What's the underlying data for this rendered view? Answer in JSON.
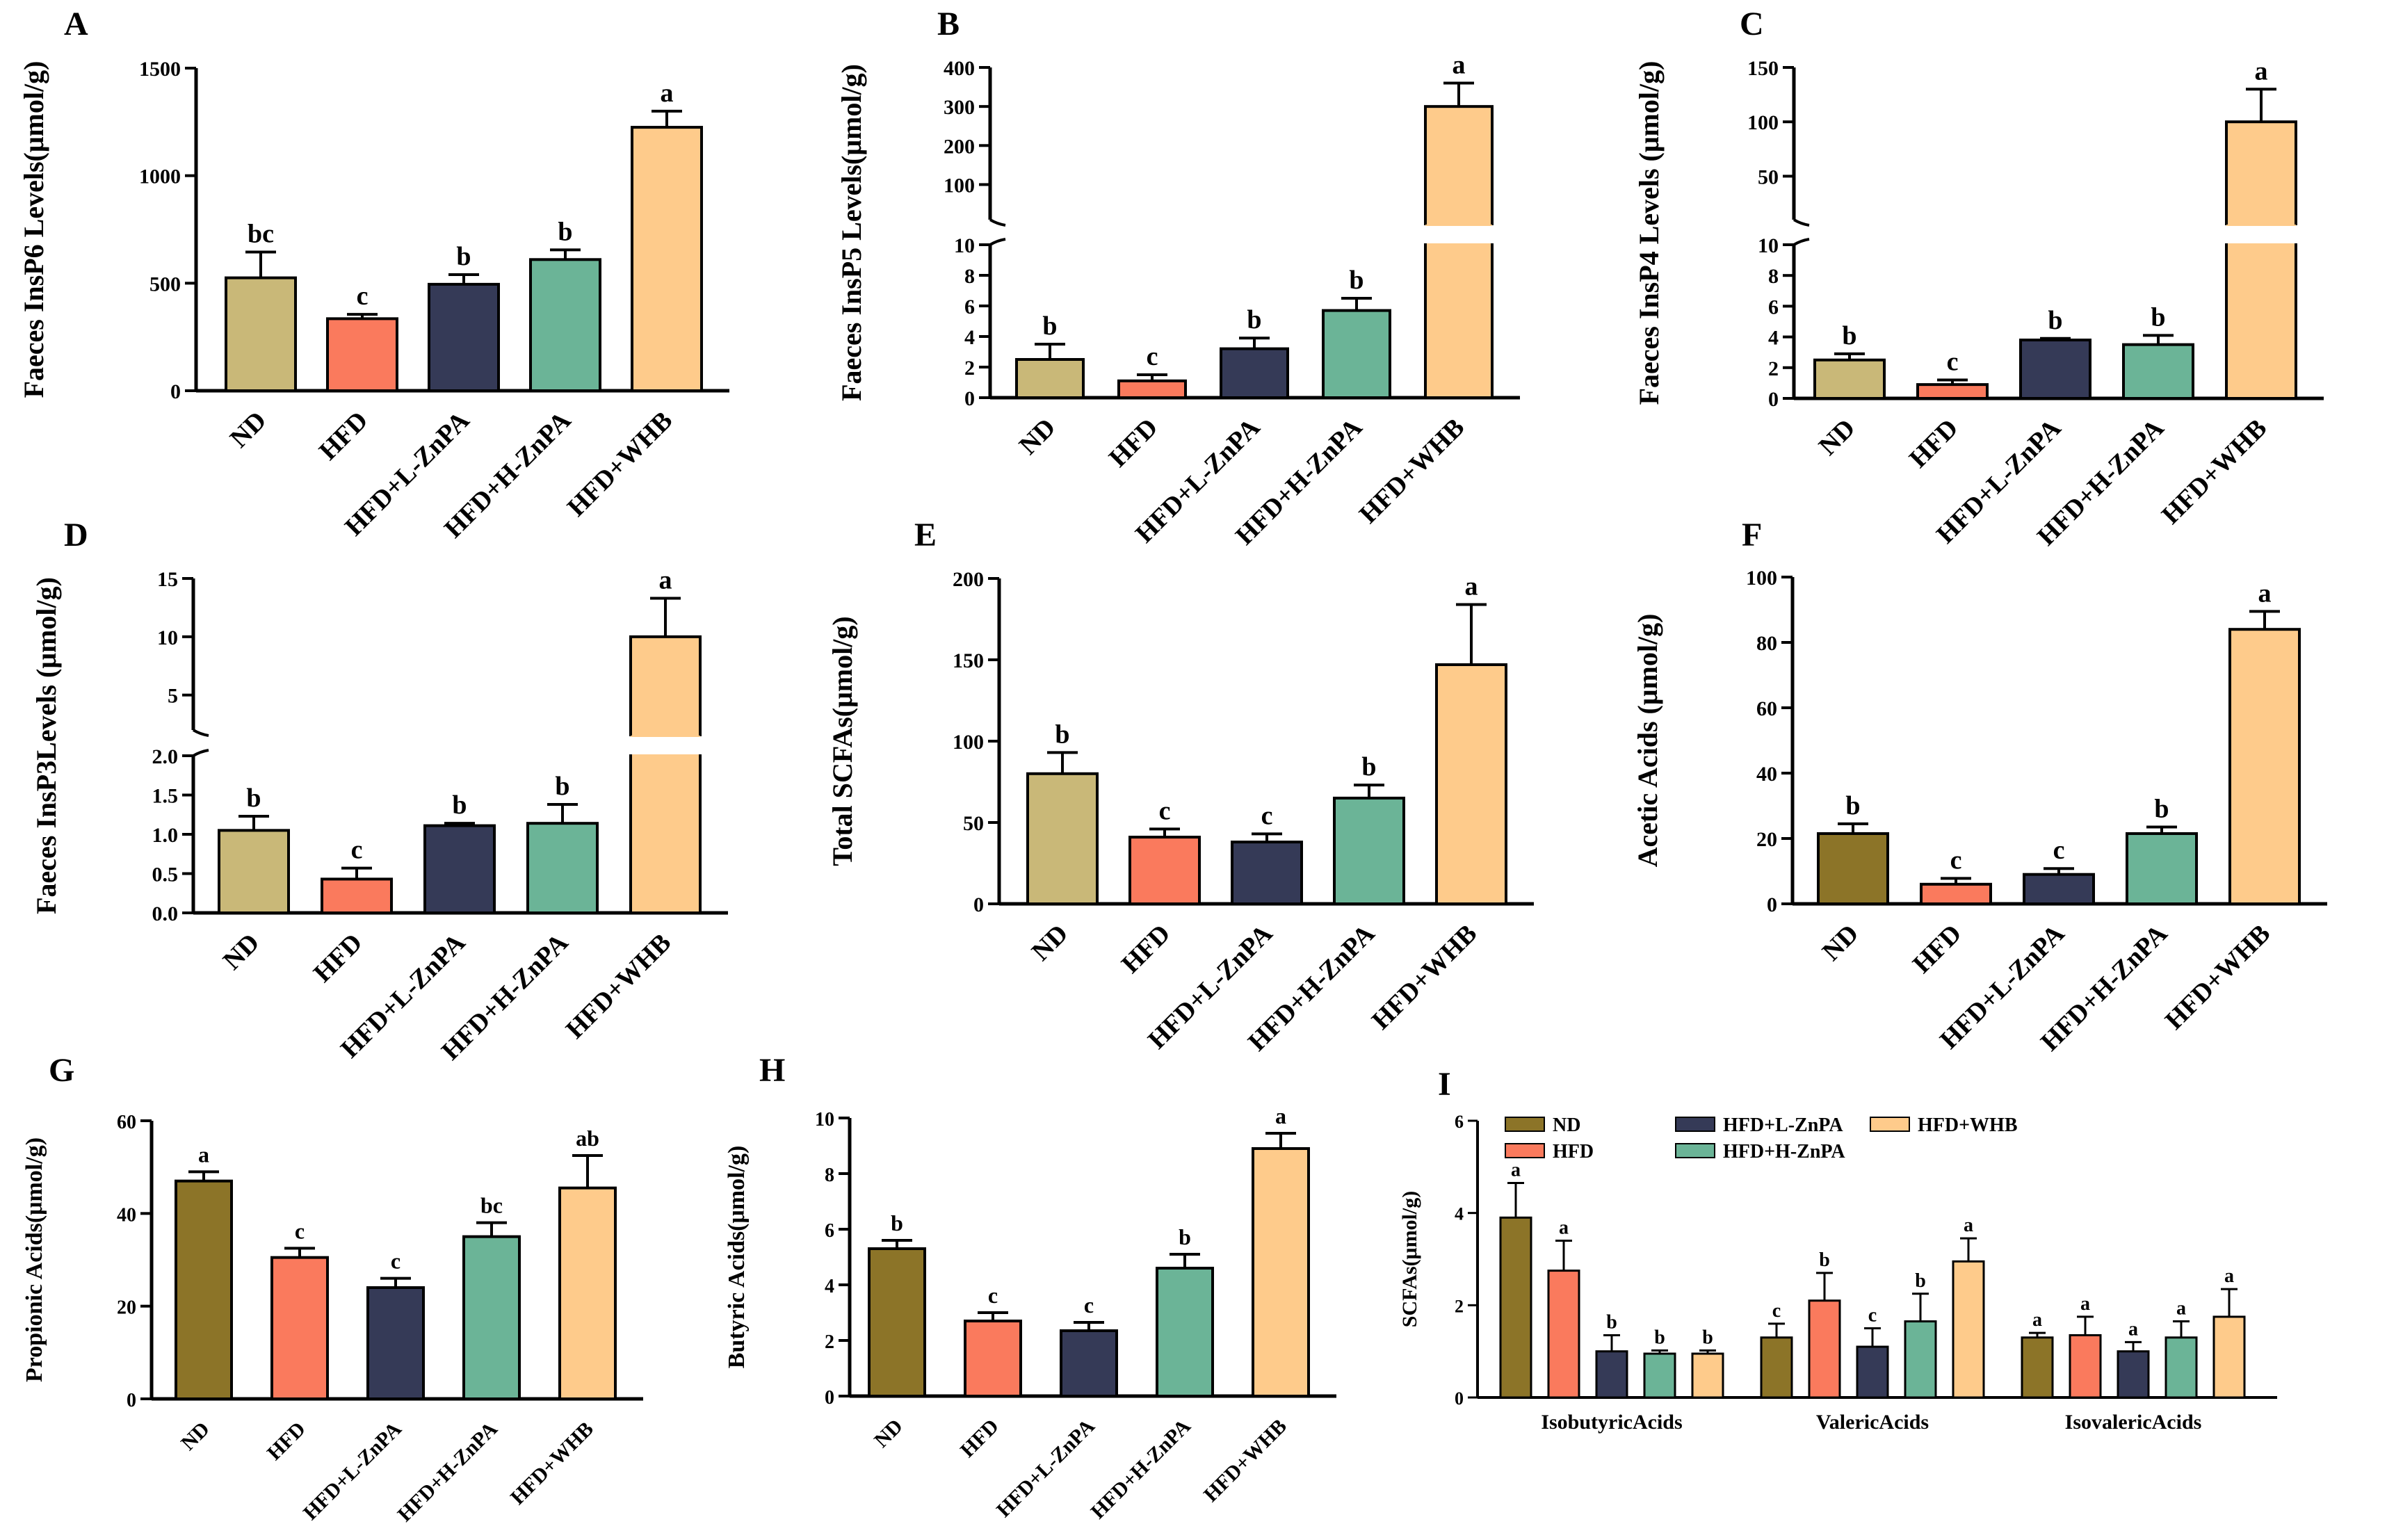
{
  "colors": {
    "ND_light": "#C9B878",
    "ND_dark": "#8C7428",
    "HFD": "#FA7A5D",
    "L_ZnPA": "#353A57",
    "H_ZnPA": "#6BB497",
    "WHB": "#FECB8B"
  },
  "chart_data": [
    {
      "panel": "A",
      "type": "bar",
      "ylabel": "Faeces InsP6 Levels(μmol/g)",
      "categories": [
        "ND",
        "HFD",
        "HFD+L-ZnPA",
        "HFD+H-ZnPA",
        "HFD+WHB"
      ],
      "values": [
        525,
        335,
        495,
        610,
        1225
      ],
      "errors": [
        120,
        20,
        45,
        45,
        75
      ],
      "letters": [
        "bc",
        "c",
        "b",
        "b",
        "a"
      ],
      "ylim": [
        0,
        1500
      ],
      "yticks": [
        "0",
        "500",
        "1000",
        "1500"
      ]
    },
    {
      "panel": "B",
      "type": "bar",
      "ylabel": "Faeces InsP5 Levels(μmol/g)",
      "categories": [
        "ND",
        "HFD",
        "HFD+L-ZnPA",
        "HFD+H-ZnPA",
        "HFD+WHB"
      ],
      "values": [
        2.5,
        1.1,
        3.2,
        5.7,
        300
      ],
      "errors": [
        1.0,
        0.4,
        0.7,
        0.8,
        60
      ],
      "letters": [
        "b",
        "c",
        "b",
        "b",
        "a"
      ],
      "axis_break": true,
      "lower_ylim": [
        0,
        10
      ],
      "upper_ylim": [
        10,
        400
      ],
      "lower_ticks": [
        "0",
        "2",
        "4",
        "6",
        "8",
        "10"
      ],
      "upper_ticks": [
        "100",
        "200",
        "300",
        "400"
      ]
    },
    {
      "panel": "C",
      "type": "bar",
      "ylabel": "Faeces InsP4 Levels (μmol/g)",
      "categories": [
        "ND",
        "HFD",
        "HFD+L-ZnPA",
        "HFD+H-ZnPA",
        "HFD+WHB"
      ],
      "values": [
        2.5,
        0.9,
        3.8,
        3.5,
        100
      ],
      "errors": [
        0.4,
        0.3,
        0.1,
        0.6,
        30
      ],
      "letters": [
        "b",
        "c",
        "b",
        "b",
        "a"
      ],
      "axis_break": true,
      "lower_ylim": [
        0,
        10
      ],
      "upper_ylim": [
        10,
        150
      ],
      "lower_ticks": [
        "0",
        "2",
        "4",
        "6",
        "8",
        "10"
      ],
      "upper_ticks": [
        "50",
        "100",
        "150"
      ]
    },
    {
      "panel": "D",
      "type": "bar",
      "ylabel": "Faeces InsP3Levels (μmol/g)",
      "categories": [
        "ND",
        "HFD",
        "HFD+L-ZnPA",
        "HFD+H-ZnPA",
        "HFD+WHB"
      ],
      "values": [
        1.05,
        0.43,
        1.11,
        1.14,
        10
      ],
      "errors": [
        0.18,
        0.14,
        0.03,
        0.24,
        3.3
      ],
      "letters": [
        "b",
        "c",
        "b",
        "b",
        "a"
      ],
      "axis_break": true,
      "lower_ylim": [
        0,
        2.0
      ],
      "upper_ylim": [
        2.0,
        15
      ],
      "lower_ticks": [
        "0.0",
        "0.5",
        "1.0",
        "1.5",
        "2.0"
      ],
      "upper_ticks": [
        "5",
        "10",
        "15"
      ]
    },
    {
      "panel": "E",
      "type": "bar",
      "ylabel": "Total SCFAs(μmol/g)",
      "categories": [
        "ND",
        "HFD",
        "HFD+L-ZnPA",
        "HFD+H-ZnPA",
        "HFD+WHB"
      ],
      "values": [
        80,
        41,
        38,
        65,
        147
      ],
      "errors": [
        13,
        5,
        5,
        8,
        37
      ],
      "letters": [
        "b",
        "c",
        "c",
        "b",
        "a"
      ],
      "ylim": [
        0,
        200
      ],
      "yticks": [
        "0",
        "50",
        "100",
        "150",
        "200"
      ]
    },
    {
      "panel": "F",
      "type": "bar",
      "ylabel": "Acetic Acids (μmol/g)",
      "categories": [
        "ND",
        "HFD",
        "HFD+L-ZnPA",
        "HFD+H-ZnPA",
        "HFD+WHB"
      ],
      "values": [
        21.5,
        6,
        9,
        21.5,
        84
      ],
      "errors": [
        3,
        1.8,
        1.8,
        2,
        5.5
      ],
      "letters": [
        "b",
        "c",
        "c",
        "b",
        "a"
      ],
      "ylim": [
        0,
        100
      ],
      "yticks": [
        "0",
        "20",
        "40",
        "60",
        "80",
        "100"
      ]
    },
    {
      "panel": "G",
      "type": "bar",
      "ylabel": "Propionic Acids(μmol/g)",
      "categories": [
        "ND",
        "HFD",
        "HFD+L-ZnPA",
        "HFD+H-ZnPA",
        "HFD+WHB"
      ],
      "values": [
        47,
        30.5,
        24,
        35,
        45.5
      ],
      "errors": [
        2,
        2,
        2,
        3,
        7
      ],
      "letters": [
        "a",
        "c",
        "c",
        "bc",
        "ab"
      ],
      "ylim": [
        0,
        60
      ],
      "yticks": [
        "0",
        "20",
        "40",
        "60"
      ]
    },
    {
      "panel": "H",
      "type": "bar",
      "ylabel": "Butyric Acids(μmol/g)",
      "categories": [
        "ND",
        "HFD",
        "HFD+L-ZnPA",
        "HFD+H-ZnPA",
        "HFD+WHB"
      ],
      "values": [
        5.3,
        2.7,
        2.35,
        4.6,
        8.9
      ],
      "errors": [
        0.3,
        0.3,
        0.3,
        0.5,
        0.55
      ],
      "letters": [
        "b",
        "c",
        "c",
        "b",
        "a"
      ],
      "ylim": [
        0,
        10
      ],
      "yticks": [
        "0",
        "2",
        "4",
        "6",
        "8",
        "10"
      ]
    },
    {
      "panel": "I",
      "type": "grouped_bar",
      "ylabel": "SCFAs(μmol/g)",
      "groups": [
        "IsobutyricAcids",
        "ValericAcids",
        "IsovalericAcids"
      ],
      "series": [
        {
          "name": "ND",
          "values": [
            3.9,
            1.3,
            1.3
          ],
          "errors": [
            0.75,
            0.3,
            0.1
          ],
          "letters": [
            "a",
            "c",
            "a"
          ]
        },
        {
          "name": "HFD",
          "values": [
            2.75,
            2.1,
            1.35
          ],
          "errors": [
            0.65,
            0.6,
            0.4
          ],
          "letters": [
            "a",
            "b",
            "a"
          ]
        },
        {
          "name": "HFD+L-ZnPA",
          "values": [
            1.0,
            1.1,
            1.0
          ],
          "errors": [
            0.35,
            0.4,
            0.2
          ],
          "letters": [
            "b",
            "c",
            "a"
          ]
        },
        {
          "name": "HFD+H-ZnPA",
          "values": [
            0.95,
            1.65,
            1.3
          ],
          "errors": [
            0.07,
            0.6,
            0.35
          ],
          "letters": [
            "b",
            "b",
            "a"
          ]
        },
        {
          "name": "HFD+WHB",
          "values": [
            0.95,
            2.95,
            1.75
          ],
          "errors": [
            0.07,
            0.5,
            0.6
          ],
          "letters": [
            "b",
            "a",
            "a"
          ]
        }
      ],
      "ylim": [
        0,
        6
      ],
      "yticks": [
        "0",
        "2",
        "4",
        "6"
      ],
      "legend": [
        "ND",
        "HFD",
        "HFD+L-ZnPA",
        "HFD+H-ZnPA",
        "HFD+WHB"
      ]
    }
  ]
}
